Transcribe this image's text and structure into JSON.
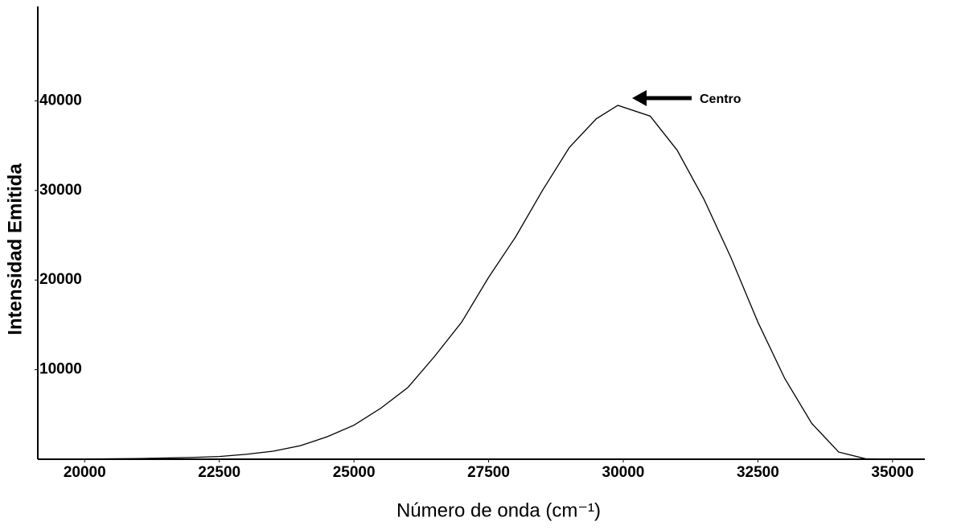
{
  "chart_data": {
    "type": "line",
    "x_label": "Número de onda (cm⁻¹)",
    "y_label": "Intensidad Emitida",
    "annotation": "Centro",
    "color": "#000000",
    "xlim": [
      19130,
      35600
    ],
    "ylim": [
      0,
      50000
    ],
    "xticks": [
      20000,
      22500,
      25000,
      27500,
      30000,
      32500,
      35000
    ],
    "yticks": [
      10000,
      20000,
      30000,
      40000
    ],
    "grid": false,
    "x": [
      19130,
      20000,
      21000,
      22000,
      22500,
      23000,
      23500,
      24000,
      24500,
      25000,
      25500,
      26000,
      26500,
      27000,
      27500,
      28000,
      28500,
      29000,
      29500,
      29900,
      30500,
      31000,
      31500,
      32000,
      32500,
      33000,
      33500,
      34000,
      34500,
      35000,
      35600
    ],
    "values": [
      0,
      30,
      80,
      200,
      300,
      550,
      900,
      1500,
      2500,
      3800,
      5700,
      8000,
      11500,
      15300,
      20300,
      24800,
      30000,
      34800,
      38000,
      39500,
      38300,
      34500,
      29000,
      22500,
      15300,
      9000,
      4000,
      800,
      50,
      0,
      0
    ]
  }
}
